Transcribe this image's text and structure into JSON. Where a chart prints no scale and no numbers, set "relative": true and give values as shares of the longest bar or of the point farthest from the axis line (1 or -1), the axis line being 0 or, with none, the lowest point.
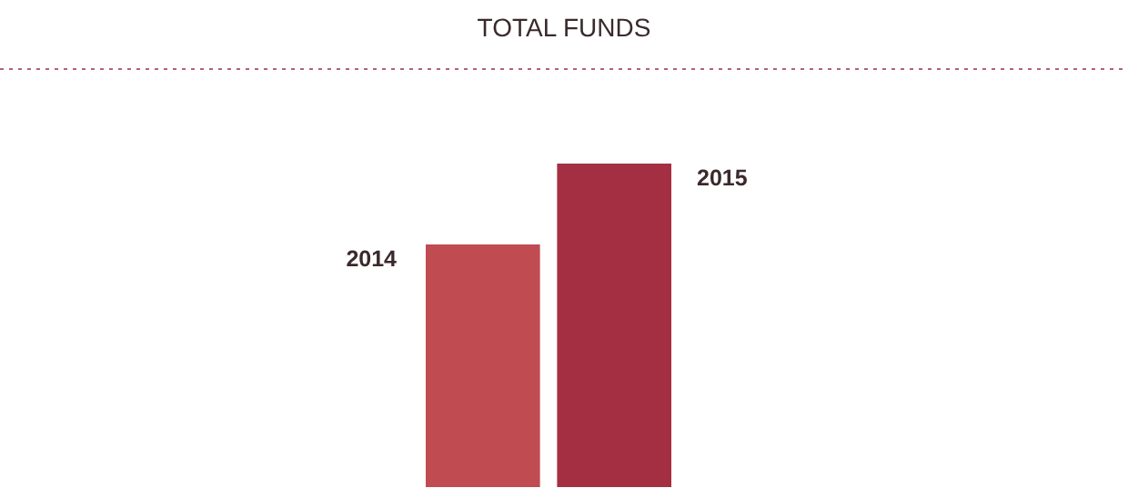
{
  "chart_data": {
    "type": "bar",
    "title": "TOTAL FUNDS",
    "relative": true,
    "categories": [
      null
    ],
    "series": [
      {
        "name": "2014",
        "color": "#c04b50",
        "values": [
          0.75
        ]
      },
      {
        "name": "2015",
        "color": "#a52f42",
        "values": [
          1
        ]
      }
    ]
  }
}
